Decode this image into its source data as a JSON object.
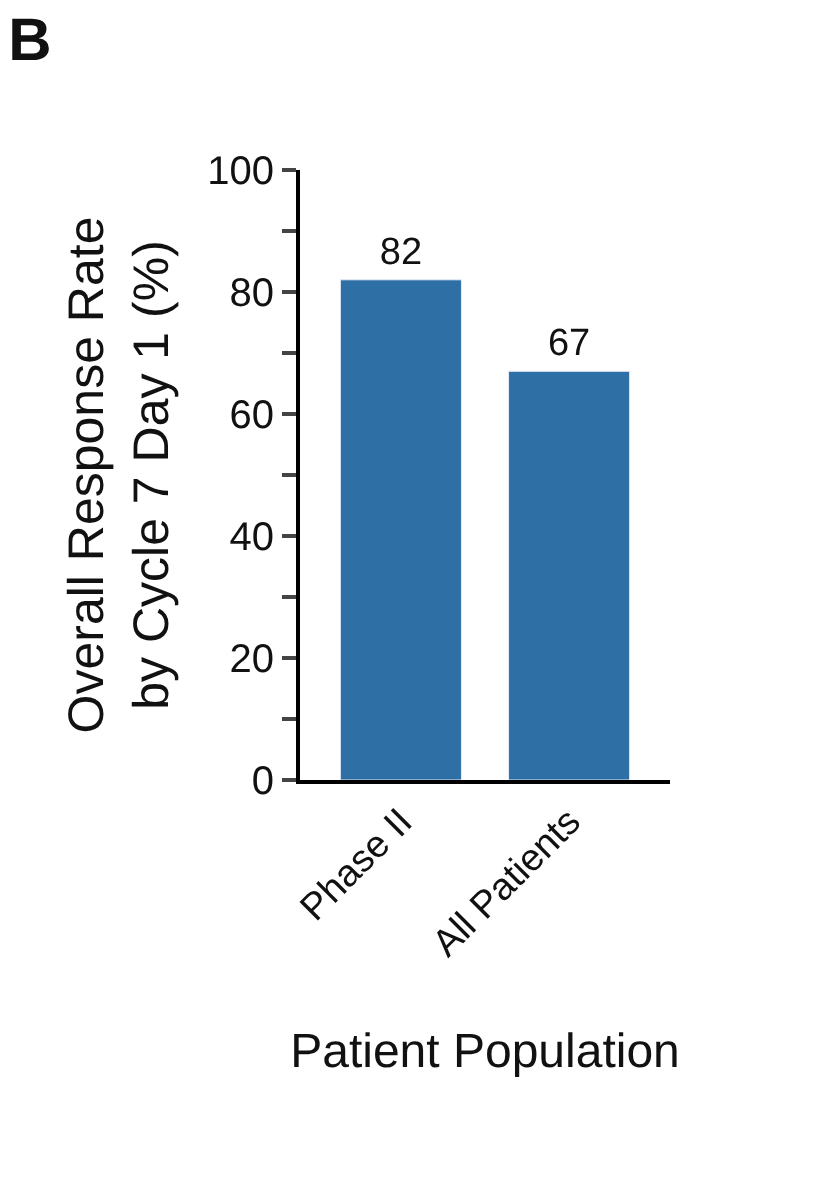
{
  "chart_data": {
    "type": "bar",
    "title": "B",
    "categories": [
      "Phase II",
      "All Patients"
    ],
    "values": [
      82,
      67
    ],
    "color": "#2e6fa6",
    "ylabel": "Overall Response Rate\nby Cycle 7 Day 1 (%)",
    "xlabel": "Patient Population",
    "ylim": [
      0,
      100
    ],
    "yticks": [
      0,
      {
        "value": 10,
        "label": null
      },
      20,
      {
        "value": 30,
        "label": null
      },
      40,
      {
        "value": 50,
        "label": null
      },
      60,
      {
        "value": 70,
        "label": null
      },
      80,
      {
        "value": 90,
        "label": null
      },
      100
    ],
    "data_labels": true
  }
}
